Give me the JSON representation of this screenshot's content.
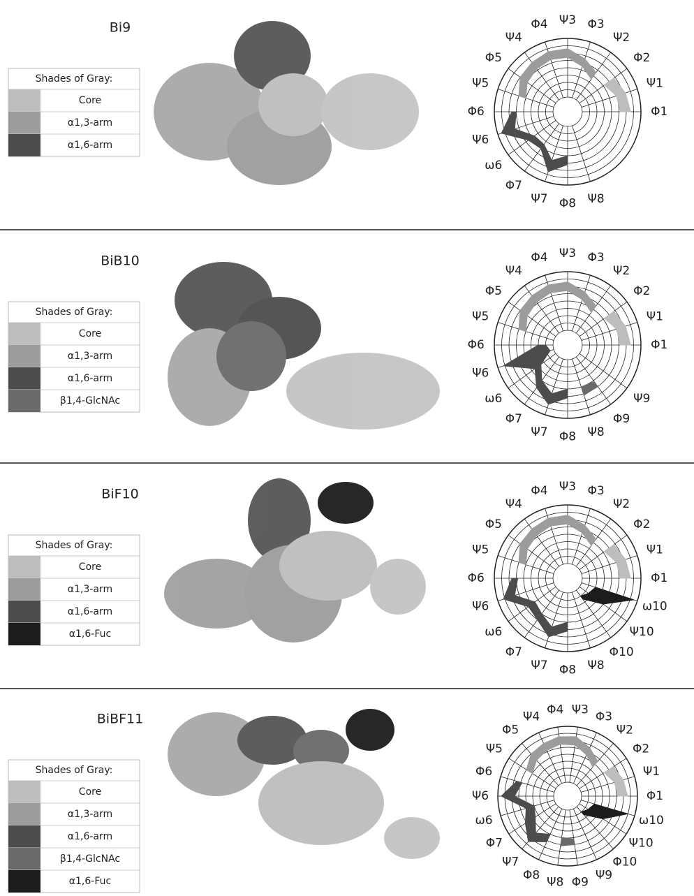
{
  "panels": [
    {
      "title": "Bi9",
      "legend": {
        "header": "Shades of Gray:",
        "items": [
          {
            "label": "Core",
            "color": "#bdbdbd"
          },
          {
            "label": "α1,3-arm",
            "color": "#9c9c9c"
          },
          {
            "label": "α1,6-arm",
            "color": "#4c4c4c"
          }
        ]
      },
      "radar_labels": [
        "Φ1",
        "Ψ1",
        "Φ2",
        "Ψ2",
        "Φ3",
        "Ψ3",
        "Φ4",
        "Ψ4",
        "Φ5",
        "Ψ5",
        "Φ6",
        "Ψ6",
        "ω6",
        "Φ7",
        "Ψ7",
        "Φ8",
        "Ψ8"
      ]
    },
    {
      "title": "BiB10",
      "legend": {
        "header": "Shades of Gray:",
        "items": [
          {
            "label": "Core",
            "color": "#bdbdbd"
          },
          {
            "label": "α1,3-arm",
            "color": "#9c9c9c"
          },
          {
            "label": "α1,6-arm",
            "color": "#4c4c4c"
          },
          {
            "label": "β1,4-GlcNAc",
            "color": "#6a6a6a"
          }
        ]
      },
      "radar_labels": [
        "Φ1",
        "Ψ1",
        "Φ2",
        "Ψ2",
        "Φ3",
        "Ψ3",
        "Φ4",
        "Ψ4",
        "Φ5",
        "Ψ5",
        "Φ6",
        "Ψ6",
        "ω6",
        "Φ7",
        "Ψ7",
        "Φ8",
        "Ψ8",
        "Φ9",
        "Ψ9"
      ]
    },
    {
      "title": "BiF10",
      "legend": {
        "header": "Shades of Gray:",
        "items": [
          {
            "label": "Core",
            "color": "#bdbdbd"
          },
          {
            "label": "α1,3-arm",
            "color": "#9c9c9c"
          },
          {
            "label": "α1,6-arm",
            "color": "#4c4c4c"
          },
          {
            "label": "α1,6-Fuc",
            "color": "#1c1c1c"
          }
        ]
      },
      "radar_labels": [
        "Φ1",
        "Ψ1",
        "Φ2",
        "Ψ2",
        "Φ3",
        "Ψ3",
        "Φ4",
        "Ψ4",
        "Φ5",
        "Ψ5",
        "Φ6",
        "Ψ6",
        "ω6",
        "Φ7",
        "Ψ7",
        "Φ8",
        "Ψ8",
        "Φ10",
        "Ψ10",
        "ω10"
      ]
    },
    {
      "title": "BiBF11",
      "legend": {
        "header": "Shades of Gray:",
        "items": [
          {
            "label": "Core",
            "color": "#bdbdbd"
          },
          {
            "label": "α1,3-arm",
            "color": "#9c9c9c"
          },
          {
            "label": "α1,6-arm",
            "color": "#4c4c4c"
          },
          {
            "label": "β1,4-GlcNAc",
            "color": "#6a6a6a"
          },
          {
            "label": "α1,6-Fuc",
            "color": "#1c1c1c"
          }
        ]
      },
      "radar_labels": [
        "Φ1",
        "Ψ1",
        "Φ2",
        "Ψ2",
        "Φ3",
        "Ψ3",
        "Φ4",
        "Ψ4",
        "Φ5",
        "Ψ5",
        "Φ6",
        "Ψ6",
        "ω6",
        "Φ7",
        "Ψ7",
        "Φ8",
        "Ψ8",
        "Φ9",
        "Ψ9",
        "Φ10",
        "Ψ10",
        "ω10"
      ]
    }
  ]
}
